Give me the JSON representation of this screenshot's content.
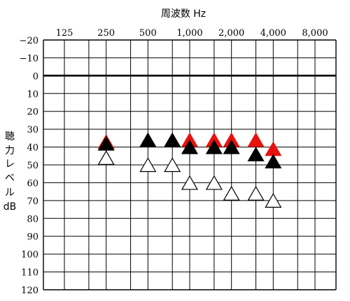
{
  "chart_data": {
    "type": "scatter",
    "title": "周波数 Hz",
    "ylabel": [
      "聴",
      "力",
      "レ",
      "ベ",
      "ル",
      "dB"
    ],
    "x_categories": [
      "125",
      "250",
      "500",
      "1,000",
      "2,000",
      "4,000",
      "8,000"
    ],
    "y_ticks": [
      "−20",
      "−10",
      "0",
      "10",
      "20",
      "30",
      "40",
      "50",
      "60",
      "70",
      "80",
      "90",
      "100",
      "110",
      "120"
    ],
    "ylim": [
      -20,
      120
    ],
    "y_inverted": true,
    "reference_line_db": 0,
    "grid": true,
    "marker": "triangle",
    "series": [
      {
        "color": "#e8120c",
        "outline": "#e8120c",
        "points": [
          {
            "x": "250",
            "y": 37
          },
          {
            "x": "500",
            "y": 36
          },
          {
            "x": "750",
            "y": 36
          },
          {
            "x": "1,000",
            "y": 36
          },
          {
            "x": "1,500",
            "y": 36
          },
          {
            "x": "2,000",
            "y": 36
          },
          {
            "x": "3,000",
            "y": 36
          },
          {
            "x": "4,000",
            "y": 41
          }
        ]
      },
      {
        "color": "#000000",
        "outline": "#000000",
        "points": [
          {
            "x": "250",
            "y": 38
          },
          {
            "x": "500",
            "y": 36
          },
          {
            "x": "750",
            "y": 36
          },
          {
            "x": "1,000",
            "y": 40
          },
          {
            "x": "1,500",
            "y": 40
          },
          {
            "x": "2,000",
            "y": 40
          },
          {
            "x": "3,000",
            "y": 44
          },
          {
            "x": "4,000",
            "y": 48
          }
        ]
      },
      {
        "color": "#ffffff",
        "outline": "#000000",
        "points": [
          {
            "x": "250",
            "y": 46
          },
          {
            "x": "500",
            "y": 50
          },
          {
            "x": "750",
            "y": 50
          },
          {
            "x": "1,000",
            "y": 60
          },
          {
            "x": "1,500",
            "y": 60
          },
          {
            "x": "2,000",
            "y": 66
          },
          {
            "x": "3,000",
            "y": 66
          },
          {
            "x": "4,000",
            "y": 70
          }
        ]
      }
    ]
  }
}
